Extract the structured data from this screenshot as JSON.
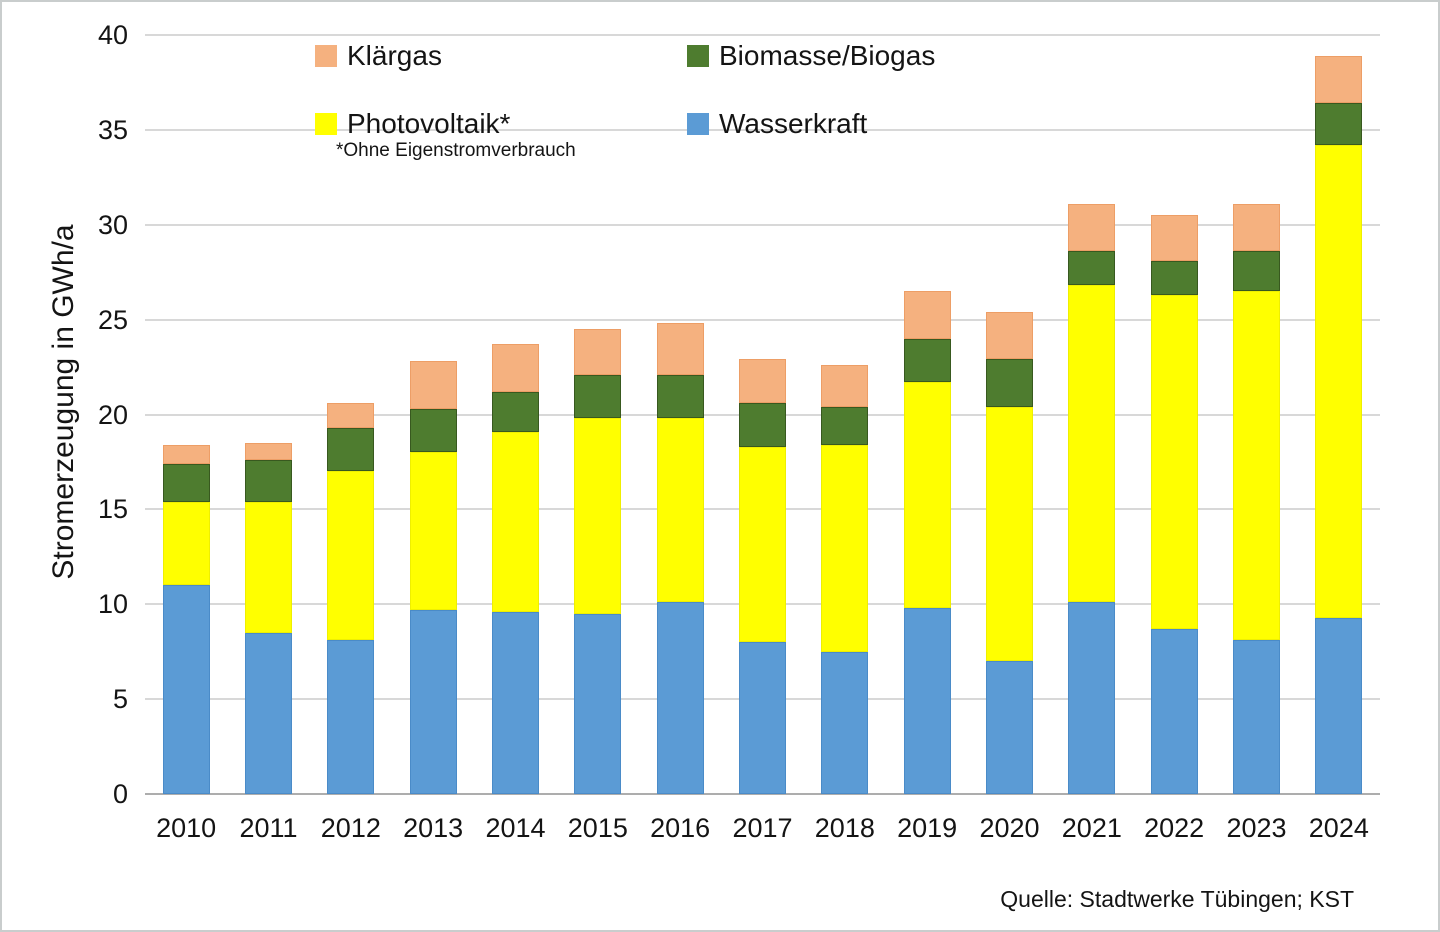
{
  "page": {
    "background": "#ffffff",
    "border_color": "#c9cdcd"
  },
  "axis": {
    "y_title": "Stromerzeugung in GWh/a"
  },
  "legend": {
    "items": [
      {
        "key": "klaergas",
        "label": "Klärgas",
        "color": "#F5B17F"
      },
      {
        "key": "biomasse-biogas",
        "label": "Biomasse/Biogas",
        "color": "#4E7C2F"
      },
      {
        "key": "photovoltaik",
        "label": "Photovoltaik*",
        "color": "#FFFF00"
      },
      {
        "key": "wasserkraft",
        "label": "Wasserkraft",
        "color": "#5B9BD5"
      }
    ],
    "footnote": "*Ohne Eigenstromverbrauch"
  },
  "source_note": "Quelle: Stadtwerke Tübingen; KST",
  "chart_data": {
    "type": "bar",
    "stacked": true,
    "title": "",
    "xlabel": "",
    "ylabel": "Stromerzeugung in GWh/a",
    "ylim": [
      0,
      40
    ],
    "yticks": [
      0,
      5,
      10,
      15,
      20,
      25,
      30,
      35,
      40
    ],
    "grid": "horizontal",
    "legend_position": "top",
    "legend_footnote": "*Ohne Eigenstromverbrauch",
    "source": "Quelle: Stadtwerke Tübingen; KST",
    "categories": [
      "2010",
      "2011",
      "2012",
      "2013",
      "2014",
      "2015",
      "2016",
      "2017",
      "2018",
      "2019",
      "2020",
      "2021",
      "2022",
      "2023",
      "2024"
    ],
    "series": [
      {
        "key": "wasserkraft",
        "name": "Wasserkraft",
        "color": "#5B9BD5",
        "border": "#4A8BC8",
        "values": [
          11.0,
          8.5,
          8.1,
          9.7,
          9.6,
          9.5,
          10.1,
          8.0,
          7.5,
          9.8,
          7.0,
          10.1,
          8.7,
          8.1,
          9.3
        ]
      },
      {
        "key": "photovoltaik",
        "name": "Photovoltaik*",
        "color": "#FFFF00",
        "border": "#EFEF00",
        "values": [
          4.4,
          6.9,
          8.9,
          8.3,
          9.5,
          10.3,
          9.7,
          10.3,
          10.9,
          11.9,
          13.4,
          16.7,
          17.6,
          18.4,
          24.9
        ]
      },
      {
        "key": "biomasse-biogas",
        "name": "Biomasse/Biogas",
        "color": "#4E7C2F",
        "border": "#38591F",
        "values": [
          2.0,
          2.2,
          2.3,
          2.3,
          2.1,
          2.3,
          2.3,
          2.3,
          2.0,
          2.3,
          2.5,
          1.8,
          1.8,
          2.1,
          2.2
        ]
      },
      {
        "key": "klaergas",
        "name": "Klärgas",
        "color": "#F5B17F",
        "border": "#ED9E66",
        "values": [
          1.0,
          0.9,
          1.3,
          2.5,
          2.5,
          2.4,
          2.7,
          2.3,
          2.2,
          2.5,
          2.5,
          2.5,
          2.4,
          2.5,
          2.5
        ]
      }
    ],
    "totals": [
      18.4,
      18.5,
      20.6,
      22.8,
      23.7,
      24.5,
      24.8,
      22.9,
      22.6,
      26.5,
      25.4,
      31.1,
      30.5,
      31.1,
      38.9
    ]
  }
}
